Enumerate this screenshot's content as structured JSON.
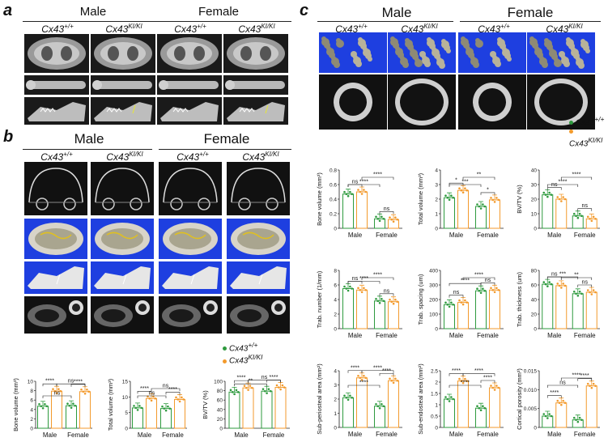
{
  "panels": {
    "a": {
      "letter": "a",
      "sexes": [
        "Male",
        "Female"
      ],
      "genotypes": [
        "Cx43",
        "+/+",
        "Cx43",
        "KI/KI"
      ]
    },
    "b": {
      "letter": "b",
      "sexes": [
        "Male",
        "Female"
      ]
    },
    "c": {
      "letter": "c",
      "sexes": [
        "Male",
        "Female"
      ]
    }
  },
  "genotype": {
    "wt_base": "Cx43",
    "wt_sup": "+/+",
    "ki_base": "Cx43",
    "ki_sup": "KI/KI"
  },
  "legend": {
    "wt": "Cx43",
    "wt_sup": "+/+",
    "ki": "Cx43",
    "ki_sup": "KI/KI",
    "wt_color": "#2e9a3e",
    "ki_color": "#f39a2c"
  },
  "colors": {
    "wt": "#2e9a3e",
    "ki": "#f39a2c"
  },
  "chart_data": [
    {
      "id": "b1",
      "type": "bar",
      "ylabel": "Bone volume (mm³)",
      "categories": [
        "Male",
        "Female"
      ],
      "ylim": [
        0,
        10
      ],
      "yticks": [
        0,
        2,
        4,
        6,
        8,
        10
      ],
      "series": [
        {
          "name": "Cx43+/+",
          "values": [
            4.7,
            4.8
          ]
        },
        {
          "name": "Cx43KI/KI",
          "values": [
            7.9,
            7.8
          ]
        }
      ],
      "sig": [
        {
          "label": "****",
          "kind": "within"
        },
        {
          "label": "****",
          "kind": "within2"
        },
        {
          "label": "ns",
          "kind": "wtwt"
        },
        {
          "label": "ns",
          "kind": "kiki"
        }
      ]
    },
    {
      "id": "b2",
      "type": "bar",
      "ylabel": "Total volume (mm³)",
      "categories": [
        "Male",
        "Female"
      ],
      "ylim": [
        0,
        15
      ],
      "yticks": [
        0,
        5,
        10,
        15
      ],
      "series": [
        {
          "name": "Cx43+/+",
          "values": [
            6.5,
            6.3
          ]
        },
        {
          "name": "Cx43KI/KI",
          "values": [
            9.5,
            9.2
          ]
        }
      ],
      "sig": [
        {
          "label": "****",
          "kind": "within"
        },
        {
          "label": "****",
          "kind": "within2"
        },
        {
          "label": "ns",
          "kind": "wtwt"
        },
        {
          "label": "ns",
          "kind": "kiki"
        }
      ]
    },
    {
      "id": "b3",
      "type": "bar",
      "ylabel": "BV/TV (%)",
      "categories": [
        "Male",
        "Female"
      ],
      "ylim": [
        0,
        100
      ],
      "yticks": [
        0,
        20,
        40,
        60,
        80,
        100
      ],
      "series": [
        {
          "name": "Cx43+/+",
          "values": [
            77,
            79
          ]
        },
        {
          "name": "Cx43KI/KI",
          "values": [
            86,
            87
          ]
        }
      ],
      "sig": [
        {
          "label": "****",
          "kind": "within"
        },
        {
          "label": "****",
          "kind": "within2"
        },
        {
          "label": "**",
          "kind": "wtwt"
        },
        {
          "label": "ns",
          "kind": "kiki"
        }
      ]
    },
    {
      "id": "c1",
      "type": "bar",
      "ylabel": "Bone volume (mm³)",
      "categories": [
        "Male",
        "Female"
      ],
      "ylim": [
        0,
        0.8
      ],
      "yticks": [
        0,
        0.2,
        0.4,
        0.6,
        0.8
      ],
      "series": [
        {
          "name": "Cx43+/+",
          "values": [
            0.47,
            0.13
          ]
        },
        {
          "name": "Cx43KI/KI",
          "values": [
            0.5,
            0.12
          ]
        }
      ],
      "sig": [
        {
          "label": "ns",
          "kind": "within"
        },
        {
          "label": "ns",
          "kind": "within2"
        },
        {
          "label": "****",
          "kind": "wtwt"
        },
        {
          "label": "****",
          "kind": "kiki"
        }
      ]
    },
    {
      "id": "c2",
      "type": "bar",
      "ylabel": "Total volume (mm³)",
      "categories": [
        "Male",
        "Female"
      ],
      "ylim": [
        0,
        4
      ],
      "yticks": [
        0,
        1,
        2,
        3,
        4
      ],
      "series": [
        {
          "name": "Cx43+/+",
          "values": [
            2.1,
            1.5
          ]
        },
        {
          "name": "Cx43KI/KI",
          "values": [
            2.6,
            1.95
          ]
        }
      ],
      "sig": [
        {
          "label": "*",
          "kind": "within"
        },
        {
          "label": "*",
          "kind": "within2"
        },
        {
          "label": "***",
          "kind": "wtwt"
        },
        {
          "label": "**",
          "kind": "kiki"
        }
      ]
    },
    {
      "id": "c3",
      "type": "bar",
      "ylabel": "BV/TV (%)",
      "categories": [
        "Male",
        "Female"
      ],
      "ylim": [
        0,
        40
      ],
      "yticks": [
        0,
        10,
        20,
        30,
        40
      ],
      "series": [
        {
          "name": "Cx43+/+",
          "values": [
            23,
            8.5
          ]
        },
        {
          "name": "Cx43KI/KI",
          "values": [
            20,
            6.5
          ]
        }
      ],
      "sig": [
        {
          "label": "ns",
          "kind": "within"
        },
        {
          "label": "ns",
          "kind": "within2"
        },
        {
          "label": "****",
          "kind": "wtwt"
        },
        {
          "label": "****",
          "kind": "kiki"
        }
      ]
    },
    {
      "id": "c4",
      "type": "bar",
      "ylabel": "Trab. number (1/mm)",
      "categories": [
        "Male",
        "Female"
      ],
      "ylim": [
        0,
        8
      ],
      "yticks": [
        0,
        2,
        4,
        6,
        8
      ],
      "series": [
        {
          "name": "Cx43+/+",
          "values": [
            5.5,
            3.8
          ]
        },
        {
          "name": "Cx43KI/KI",
          "values": [
            5.3,
            3.7
          ]
        }
      ],
      "sig": [
        {
          "label": "ns",
          "kind": "within"
        },
        {
          "label": "ns",
          "kind": "within2"
        },
        {
          "label": "****",
          "kind": "wtwt"
        },
        {
          "label": "****",
          "kind": "kiki"
        }
      ]
    },
    {
      "id": "c5",
      "type": "bar",
      "ylabel": "Trab. spacing (um)",
      "categories": [
        "Male",
        "Female"
      ],
      "ylim": [
        0,
        400
      ],
      "yticks": [
        0,
        100,
        200,
        300,
        400
      ],
      "series": [
        {
          "name": "Cx43+/+",
          "values": [
            165,
            260
          ]
        },
        {
          "name": "Cx43KI/KI",
          "values": [
            180,
            265
          ]
        }
      ],
      "sig": [
        {
          "label": "ns",
          "kind": "within"
        },
        {
          "label": "ns",
          "kind": "within2"
        },
        {
          "label": "****",
          "kind": "wtwt"
        },
        {
          "label": "****",
          "kind": "kiki"
        }
      ]
    },
    {
      "id": "c6",
      "type": "bar",
      "ylabel": "Trab. thickness (um)",
      "categories": [
        "Male",
        "Female"
      ],
      "ylim": [
        0,
        80
      ],
      "yticks": [
        0,
        20,
        40,
        60,
        80
      ],
      "series": [
        {
          "name": "Cx43+/+",
          "values": [
            61,
            48
          ]
        },
        {
          "name": "Cx43KI/KI",
          "values": [
            59,
            50
          ]
        }
      ],
      "sig": [
        {
          "label": "ns",
          "kind": "within"
        },
        {
          "label": "ns",
          "kind": "within2"
        },
        {
          "label": "***",
          "kind": "wtwt"
        },
        {
          "label": "**",
          "kind": "kiki"
        }
      ]
    },
    {
      "id": "c7",
      "type": "bar",
      "ylabel": "Sub-periosteal area (mm²)",
      "categories": [
        "Male",
        "Female"
      ],
      "ylim": [
        0,
        4
      ],
      "yticks": [
        0,
        1,
        2,
        3,
        4
      ],
      "series": [
        {
          "name": "Cx43+/+",
          "values": [
            2.1,
            1.5
          ]
        },
        {
          "name": "Cx43KI/KI",
          "values": [
            3.5,
            3.3
          ]
        }
      ],
      "sig": [
        {
          "label": "****",
          "kind": "within"
        },
        {
          "label": "****",
          "kind": "within2"
        },
        {
          "label": "****",
          "kind": "wtwt"
        },
        {
          "label": "****",
          "kind": "kiki"
        }
      ]
    },
    {
      "id": "c8",
      "type": "bar",
      "ylabel": "Sub-endosteal area (mm²)",
      "categories": [
        "Male",
        "Female"
      ],
      "ylim": [
        0,
        2.5
      ],
      "yticks": [
        0,
        0.5,
        1,
        1.5,
        2,
        2.5
      ],
      "series": [
        {
          "name": "Cx43+/+",
          "values": [
            1.25,
            0.85
          ]
        },
        {
          "name": "Cx43KI/KI",
          "values": [
            2.05,
            1.75
          ]
        }
      ],
      "sig": [
        {
          "label": "****",
          "kind": "within"
        },
        {
          "label": "****",
          "kind": "within2"
        },
        {
          "label": "****",
          "kind": "wtwt"
        },
        {
          "label": "****",
          "kind": "kiki"
        }
      ]
    },
    {
      "id": "c9",
      "type": "bar",
      "ylabel": "Cortical porosity (mm³)",
      "categories": [
        "Male",
        "Female"
      ],
      "ylim": [
        0,
        0.015
      ],
      "yticks": [
        0,
        0.005,
        0.01,
        0.015
      ],
      "series": [
        {
          "name": "Cx43+/+",
          "values": [
            0.003,
            0.002
          ]
        },
        {
          "name": "Cx43KI/KI",
          "values": [
            0.0065,
            0.011
          ]
        }
      ],
      "sig": [
        {
          "label": "****",
          "kind": "within"
        },
        {
          "label": "****",
          "kind": "within2"
        },
        {
          "label": "ns",
          "kind": "wtwt"
        },
        {
          "label": "****",
          "kind": "kiki"
        }
      ]
    }
  ]
}
